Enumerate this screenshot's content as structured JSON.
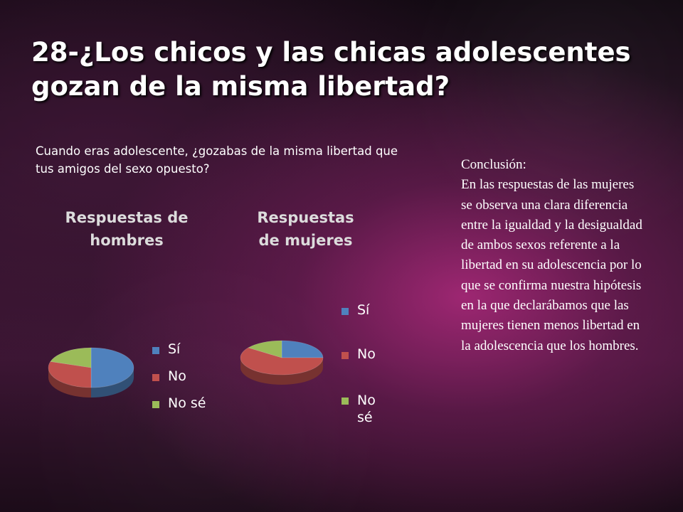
{
  "slide": {
    "title": "28-¿Los chicos y las chicas adolescentes gozan de la misma libertad?",
    "question": "Cuando eras adolescente, ¿gozabas de la misma libertad que tus amigos del sexo opuesto?",
    "conclusion": {
      "heading": "Conclusión:",
      "body": "En las respuestas de las mujeres  se observa una clara diferencia entre la igualdad y la desigualdad de ambos sexos referente a la libertad en su adolescencia por lo que se confirma nuestra hipótesis en la que declarábamos que las mujeres tienen menos libertad en la adolescencia que los hombres."
    }
  },
  "colors": {
    "si": "#4f81bd",
    "no": "#c0504d",
    "nose": "#9bbb59"
  },
  "chart_data": [
    {
      "type": "pie",
      "title": "Respuestas de hombres",
      "categories": [
        "Sí",
        "No",
        "No sé"
      ],
      "values": [
        50,
        30,
        20
      ],
      "legend": "right"
    },
    {
      "type": "pie",
      "title": "Respuestas de mujeres",
      "categories": [
        "Sí",
        "No",
        "No sé"
      ],
      "values": [
        25,
        60,
        15
      ],
      "legend": "right"
    }
  ]
}
